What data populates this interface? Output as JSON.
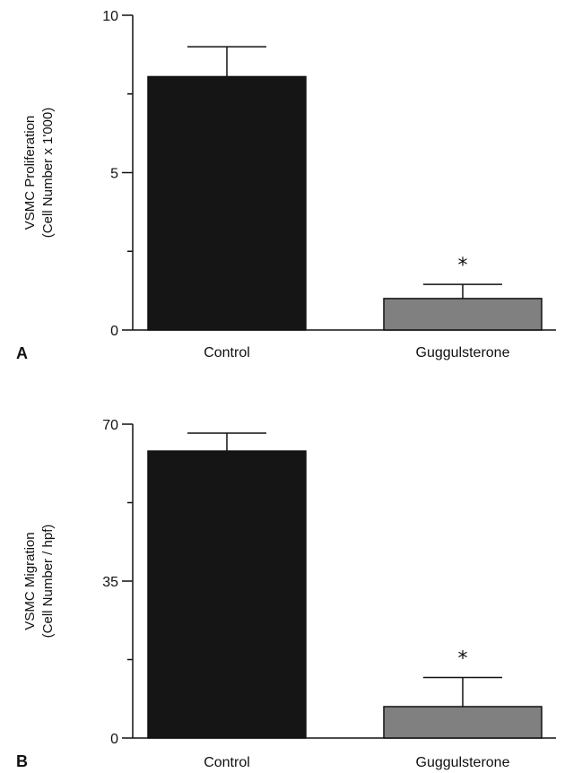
{
  "chart_data": [
    {
      "type": "bar",
      "panel_label": "A",
      "categories": [
        "Control",
        "Guggulsterone"
      ],
      "values": [
        8.05,
        1.0
      ],
      "error_upper": [
        9.0,
        1.45
      ],
      "significance": [
        "",
        "*"
      ],
      "ylabel_line1": "VSMC Proliferation",
      "ylabel_line2": "(Cell Number x 1'000)",
      "ylim": [
        0,
        10
      ],
      "yticks": [
        0,
        5,
        10
      ],
      "y_minor_ticks": [
        2.5,
        7.5
      ],
      "bar_colors": [
        "#151515",
        "#808080"
      ]
    },
    {
      "type": "bar",
      "panel_label": "B",
      "categories": [
        "Control",
        "Guggulsterone"
      ],
      "values": [
        64,
        7
      ],
      "error_upper": [
        68,
        13.5
      ],
      "significance": [
        "",
        "*"
      ],
      "ylabel_line1": "VSMC Migration",
      "ylabel_line2": "(Cell Number / hpf)",
      "ylim": [
        0,
        70
      ],
      "yticks": [
        0,
        35,
        70
      ],
      "y_minor_ticks": [
        17.5,
        52.5
      ],
      "bar_colors": [
        "#151515",
        "#808080"
      ]
    }
  ]
}
